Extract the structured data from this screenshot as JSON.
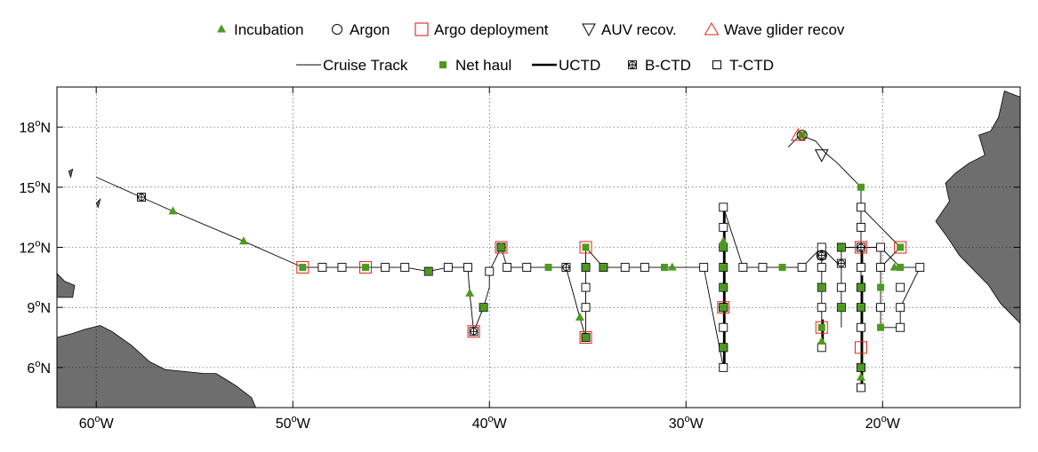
{
  "legend": {
    "row1": [
      {
        "key": "incubation",
        "label": "Incubation",
        "symbol": "triangle-filled",
        "color": "#4c9a1d"
      },
      {
        "key": "argon",
        "label": "Argon",
        "symbol": "circle-open",
        "color": "#000000"
      },
      {
        "key": "argo",
        "label": "Argo deployment",
        "symbol": "square-open",
        "color": "#e0251b"
      },
      {
        "key": "auv",
        "label": "AUV recov.",
        "symbol": "triangle-down-open",
        "color": "#000000"
      },
      {
        "key": "wave",
        "label": "Wave glider recov",
        "symbol": "triangle-open",
        "color": "#e0251b"
      }
    ],
    "row2": [
      {
        "key": "track",
        "label": "Cruise Track",
        "symbol": "thin-line",
        "color": "#000000"
      },
      {
        "key": "net",
        "label": "Net haul",
        "symbol": "square-filled",
        "color": "#4c9a1d"
      },
      {
        "key": "uctd",
        "label": "UCTD",
        "symbol": "thick-line",
        "color": "#000000"
      },
      {
        "key": "bctd",
        "label": "B-CTD",
        "symbol": "square-plus",
        "color": "#000000"
      },
      {
        "key": "tctd",
        "label": "T-CTD",
        "symbol": "square-open",
        "color": "#000000"
      }
    ]
  },
  "colors": {
    "land": "#6e6e6e",
    "incubation": "#4c9a1d",
    "argo": "#e0251b"
  },
  "axes": {
    "lon_min": -62,
    "lon_max": -13,
    "lat_min": 4,
    "lat_max": 20,
    "x_ticks": [
      {
        "value": -60,
        "deg": "60",
        "suffix": "W"
      },
      {
        "value": -50,
        "deg": "50",
        "suffix": "W"
      },
      {
        "value": -40,
        "deg": "40",
        "suffix": "W"
      },
      {
        "value": -30,
        "deg": "30",
        "suffix": "W"
      },
      {
        "value": -20,
        "deg": "20",
        "suffix": "W"
      }
    ],
    "y_ticks": [
      {
        "value": 18,
        "deg": "18",
        "suffix": "N"
      },
      {
        "value": 15,
        "deg": "15",
        "suffix": "N"
      },
      {
        "value": 12,
        "deg": "12",
        "suffix": "N"
      },
      {
        "value": 9,
        "deg": "9",
        "suffix": "N"
      },
      {
        "value": 6,
        "deg": "6",
        "suffix": "N"
      }
    ],
    "degree_symbol": "o",
    "grid": true
  },
  "map_data": {
    "track": [
      [
        -60,
        15.5
      ],
      [
        -57.7,
        14.5
      ],
      [
        -56.1,
        13.8
      ],
      [
        -52.5,
        12.3
      ],
      [
        -49.5,
        11
      ],
      [
        -48.5,
        11
      ],
      [
        -47.5,
        11
      ],
      [
        -46.3,
        11
      ],
      [
        -45.3,
        11
      ],
      [
        -44.3,
        11
      ],
      [
        -43.1,
        10.8
      ],
      [
        -42.1,
        11
      ],
      [
        -41.1,
        11
      ],
      [
        -41,
        9.7
      ],
      [
        -40.8,
        7.8
      ],
      [
        -40.3,
        9
      ],
      [
        -40,
        10
      ],
      [
        -40,
        10.8
      ],
      [
        -39.4,
        12
      ],
      [
        -39.1,
        11
      ],
      [
        -38.1,
        11
      ],
      [
        -37,
        11
      ],
      [
        -36.1,
        11
      ],
      [
        -35.4,
        8.5
      ],
      [
        -35.1,
        7.5
      ],
      [
        -35.1,
        9
      ],
      [
        -35.1,
        10
      ],
      [
        -35.1,
        11
      ],
      [
        -35.1,
        12
      ],
      [
        -34.2,
        11
      ],
      [
        -33.1,
        11
      ],
      [
        -32.1,
        11
      ],
      [
        -31.1,
        11
      ],
      [
        -30.7,
        11
      ],
      [
        -30.1,
        11
      ],
      [
        -29.1,
        11
      ],
      [
        -28.1,
        6
      ],
      [
        -28.1,
        14
      ],
      [
        -27.1,
        11
      ],
      [
        -26.1,
        11
      ],
      [
        -25.1,
        11
      ],
      [
        -24.1,
        11
      ],
      [
        -23.1,
        12
      ],
      [
        -23.1,
        7
      ],
      [
        -23.1,
        12
      ],
      [
        -22.1,
        11
      ],
      [
        -22.1,
        8
      ],
      [
        -22.1,
        12
      ],
      [
        -21.1,
        12
      ],
      [
        -21.1,
        15
      ],
      [
        -21.1,
        5
      ],
      [
        -21.1,
        12
      ],
      [
        -20.1,
        12
      ],
      [
        -19.1,
        11
      ],
      [
        -18.1,
        11
      ],
      [
        -19.1,
        9
      ],
      [
        -19.1,
        8
      ],
      [
        -20.1,
        8
      ],
      [
        -20.1,
        12
      ],
      [
        -20.1,
        11
      ],
      [
        -19.1,
        12
      ],
      [
        -21.1,
        14
      ]
    ],
    "track2": [
      [
        -24.8,
        17
      ],
      [
        -24.2,
        17.6
      ],
      [
        -23.4,
        17.3
      ],
      [
        -22.9,
        16.7
      ],
      [
        -22.3,
        16.2
      ],
      [
        -21.1,
        15
      ]
    ],
    "uctd": [
      [
        [
          -28.05,
          6
        ],
        [
          -28.05,
          14
        ]
      ],
      [
        [
          -21.05,
          5.2
        ],
        [
          -21.05,
          10.6
        ]
      ],
      [
        [
          -21.05,
          11.2
        ],
        [
          -21.05,
          12.2
        ]
      ],
      [
        [
          -23.05,
          7
        ],
        [
          -23.05,
          8.4
        ]
      ]
    ],
    "tctd": [
      [
        -40,
        10.8
      ],
      [
        -41.1,
        11
      ],
      [
        -42.1,
        11
      ],
      [
        -44.3,
        11
      ],
      [
        -45.3,
        11
      ],
      [
        -47.5,
        11
      ],
      [
        -48.5,
        11
      ],
      [
        -39.1,
        11
      ],
      [
        -38.1,
        11
      ],
      [
        -35.1,
        10
      ],
      [
        -35.1,
        9
      ],
      [
        -34.2,
        11
      ],
      [
        -33.1,
        11
      ],
      [
        -32.1,
        11
      ],
      [
        -29.1,
        11
      ],
      [
        -28.1,
        14
      ],
      [
        -28.1,
        13
      ],
      [
        -28.1,
        12
      ],
      [
        -28.1,
        11
      ],
      [
        -28.1,
        9
      ],
      [
        -28.1,
        8
      ],
      [
        -28.1,
        7
      ],
      [
        -28.1,
        6
      ],
      [
        -27.1,
        11
      ],
      [
        -26.1,
        11
      ],
      [
        -24.1,
        11
      ],
      [
        -23.1,
        12
      ],
      [
        -23.1,
        11
      ],
      [
        -23.1,
        10
      ],
      [
        -23.1,
        9
      ],
      [
        -23.1,
        7
      ],
      [
        -22.1,
        12
      ],
      [
        -22.1,
        10
      ],
      [
        -22.1,
        9
      ],
      [
        -21.1,
        14
      ],
      [
        -21.1,
        13
      ],
      [
        -21.1,
        11
      ],
      [
        -21.1,
        10
      ],
      [
        -21.1,
        9
      ],
      [
        -21.1,
        8
      ],
      [
        -21.1,
        5
      ],
      [
        -20.1,
        12
      ],
      [
        -20.1,
        11
      ],
      [
        -20.1,
        9
      ],
      [
        -19.1,
        10
      ],
      [
        -19.1,
        9
      ],
      [
        -19.1,
        8
      ],
      [
        -18.1,
        11
      ]
    ],
    "bctd": [
      [
        -57.7,
        14.5
      ],
      [
        -43.1,
        10.8
      ],
      [
        -40.8,
        7.8
      ],
      [
        -40.3,
        9
      ],
      [
        -39.4,
        12
      ],
      [
        -36.1,
        11
      ],
      [
        -35.1,
        11
      ],
      [
        -35.1,
        7.5
      ],
      [
        -28.1,
        10
      ],
      [
        -28.1,
        9
      ],
      [
        -28.1,
        7
      ],
      [
        -23.1,
        11.6
      ],
      [
        -22.1,
        11.2
      ],
      [
        -21.1,
        12
      ],
      [
        -21.1,
        6
      ]
    ],
    "net_haul": [
      [
        -49.5,
        11
      ],
      [
        -46.3,
        11
      ],
      [
        -43.1,
        10.8
      ],
      [
        -40.3,
        9
      ],
      [
        -39.4,
        12
      ],
      [
        -37,
        11
      ],
      [
        -35.1,
        11
      ],
      [
        -35.1,
        7.5
      ],
      [
        -35.1,
        12
      ],
      [
        -34.2,
        11
      ],
      [
        -31.1,
        11
      ],
      [
        -28.1,
        12
      ],
      [
        -28.1,
        11
      ],
      [
        -28.1,
        10
      ],
      [
        -28.1,
        9
      ],
      [
        -28.1,
        7
      ],
      [
        -25.1,
        11
      ],
      [
        -23.1,
        10
      ],
      [
        -23.1,
        8
      ],
      [
        -22.1,
        12
      ],
      [
        -22.1,
        9
      ],
      [
        -21.1,
        15
      ],
      [
        -21.1,
        10
      ],
      [
        -21.1,
        9
      ],
      [
        -21.1,
        6
      ],
      [
        -20.1,
        10
      ],
      [
        -20.1,
        8
      ],
      [
        -19.1,
        12
      ],
      [
        -19.1,
        11
      ],
      [
        -24.1,
        17.6
      ]
    ],
    "incubation": [
      [
        -56.1,
        13.8
      ],
      [
        -52.5,
        12.3
      ],
      [
        -41,
        9.7
      ],
      [
        -35.4,
        8.5
      ],
      [
        -39.4,
        12
      ],
      [
        -30.7,
        11
      ],
      [
        -28.1,
        12.3
      ],
      [
        -23.1,
        7.3
      ],
      [
        -21.1,
        5.5
      ],
      [
        -19.4,
        11
      ]
    ],
    "argo": [
      [
        -49.5,
        11
      ],
      [
        -46.3,
        11
      ],
      [
        -40.8,
        7.8
      ],
      [
        -39.4,
        12
      ],
      [
        -35.1,
        12
      ],
      [
        -35.1,
        7.5
      ],
      [
        -28.1,
        9
      ],
      [
        -23.1,
        8
      ],
      [
        -21.1,
        12
      ],
      [
        -21.1,
        7
      ],
      [
        -19.1,
        12
      ]
    ],
    "argon": [
      [
        -24.1,
        17.6
      ],
      [
        -23.1,
        11.6
      ]
    ],
    "auv": [
      [
        -23.1,
        16.6
      ]
    ],
    "wave_glider": [
      [
        -24.3,
        17.6
      ]
    ],
    "land": [
      [
        [
          -62,
          3.8
        ],
        [
          -62,
          7.5
        ],
        [
          -61.2,
          7.7
        ],
        [
          -60.6,
          7.9
        ],
        [
          -59.8,
          8.1
        ],
        [
          -59.2,
          7.8
        ],
        [
          -58.2,
          7.1
        ],
        [
          -57.3,
          6.3
        ],
        [
          -56.5,
          5.9
        ],
        [
          -55.5,
          5.8
        ],
        [
          -54.5,
          5.7
        ],
        [
          -53.9,
          5.7
        ],
        [
          -53.4,
          5.4
        ],
        [
          -52.9,
          5.1
        ],
        [
          -52.1,
          4.5
        ],
        [
          -51.8,
          3.8
        ]
      ],
      [
        [
          -62,
          9.5
        ],
        [
          -61.2,
          9.5
        ],
        [
          -61.1,
          10.1
        ],
        [
          -61.6,
          10.3
        ],
        [
          -62,
          10.7
        ]
      ],
      [
        [
          -61.4,
          15.8
        ],
        [
          -61.2,
          15.9
        ],
        [
          -61.3,
          15.5
        ]
      ],
      [
        [
          -60.0,
          14.2
        ],
        [
          -59.8,
          14.4
        ],
        [
          -59.9,
          14.0
        ]
      ],
      [
        [
          -13,
          19.5
        ],
        [
          -13.8,
          19.8
        ],
        [
          -14.1,
          18.5
        ],
        [
          -14.5,
          17.8
        ],
        [
          -15.1,
          17.6
        ],
        [
          -14.8,
          16.6
        ],
        [
          -15.6,
          16.2
        ],
        [
          -16.3,
          15.7
        ],
        [
          -16.8,
          15.2
        ],
        [
          -16.6,
          14.3
        ],
        [
          -17.3,
          13.3
        ],
        [
          -16.7,
          12.5
        ],
        [
          -16.1,
          11.6
        ],
        [
          -15.4,
          10.9
        ],
        [
          -14.6,
          10.1
        ],
        [
          -14.0,
          9.2
        ],
        [
          -13.4,
          8.6
        ],
        [
          -13.0,
          8.2
        ]
      ]
    ]
  }
}
